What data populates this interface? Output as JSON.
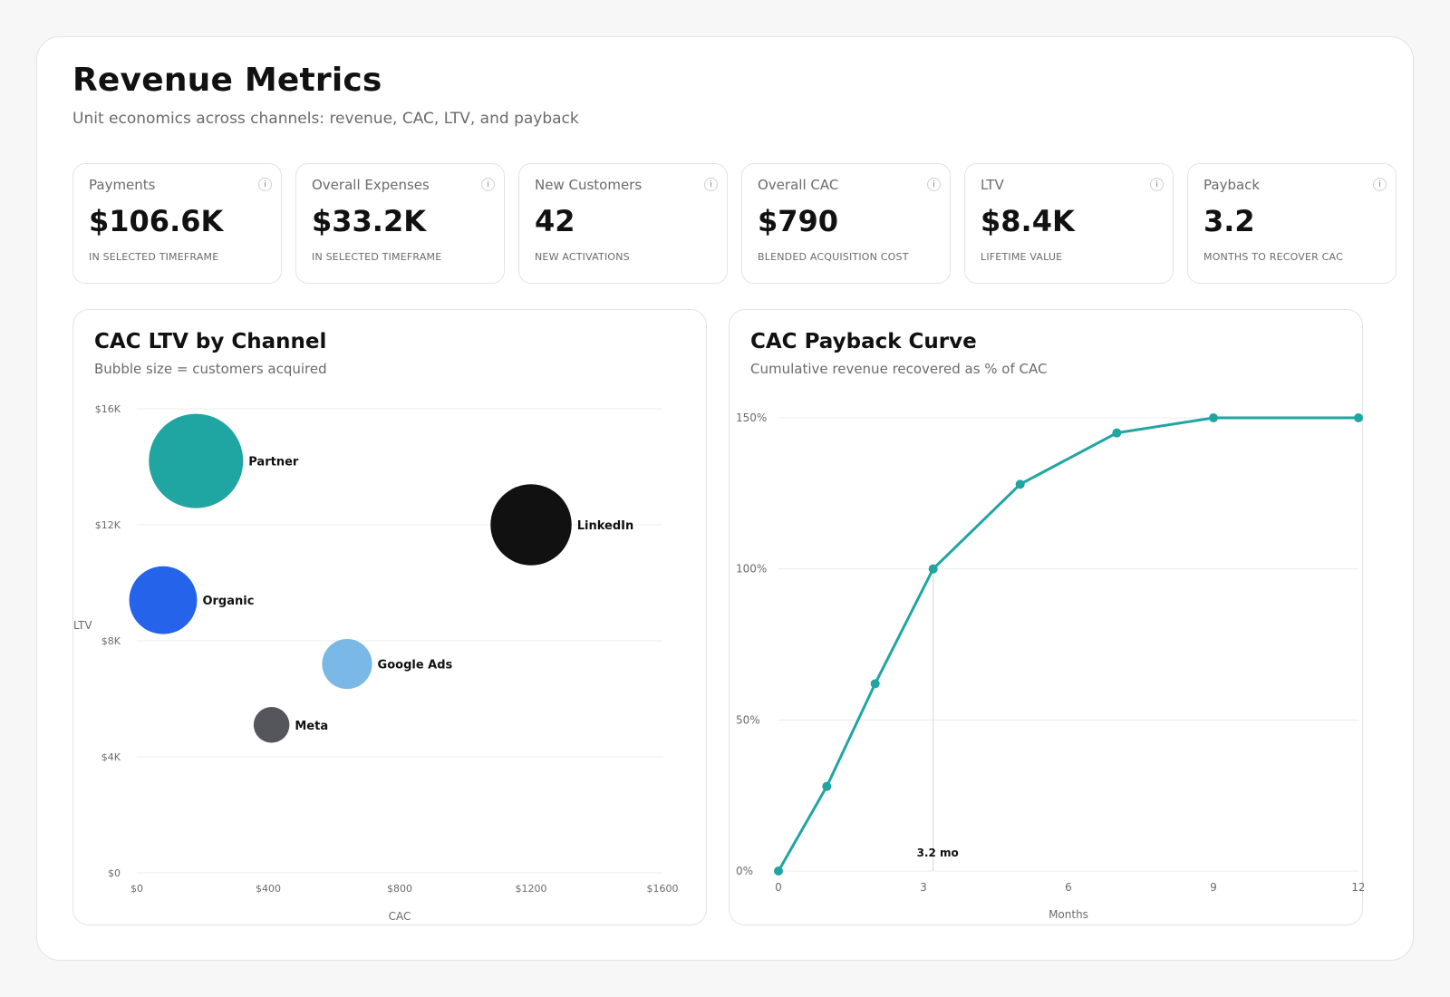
{
  "header": {
    "title": "Revenue Metrics",
    "subtitle": "Unit economics across channels: revenue, CAC, LTV, and payback"
  },
  "kpis": [
    {
      "label": "Payments",
      "value": "$106.6K",
      "caption": "IN SELECTED TIMEFRAME",
      "info": "i"
    },
    {
      "label": "Overall Expenses",
      "value": "$33.2K",
      "caption": "IN SELECTED TIMEFRAME",
      "info": "i"
    },
    {
      "label": "New Customers",
      "value": "42",
      "caption": "NEW ACTIVATIONS",
      "info": "i"
    },
    {
      "label": "Overall CAC",
      "value": "$790",
      "caption": "BLENDED ACQUISITION COST",
      "info": "i"
    },
    {
      "label": "LTV",
      "value": "$8.4K",
      "caption": "LIFETIME VALUE",
      "info": "i"
    },
    {
      "label": "Payback",
      "value": "3.2",
      "caption": "MONTHS TO RECOVER CAC",
      "info": "i"
    }
  ],
  "chart_data": [
    {
      "type": "scatter",
      "title": "CAC LTV by Channel",
      "subtitle": "Bubble size = customers acquired",
      "xlabel": "CAC",
      "ylabel": "LTV",
      "xlim": [
        0,
        1600
      ],
      "ylim": [
        0,
        16000
      ],
      "x_ticks": [
        0,
        400,
        800,
        1200,
        1600
      ],
      "x_tick_labels": [
        "$0",
        "$400",
        "$800",
        "$1200",
        "$1600"
      ],
      "y_ticks": [
        0,
        4000,
        8000,
        12000,
        16000
      ],
      "y_tick_labels": [
        "$0",
        "$4K",
        "$8K",
        "$12K",
        "$16K"
      ],
      "grid": "horizontal",
      "points": [
        {
          "label": "Partner",
          "x": 180,
          "y": 14200,
          "size": 1.0,
          "color": "#1fa5a2"
        },
        {
          "label": "LinkedIn",
          "x": 1200,
          "y": 12000,
          "size": 0.86,
          "color": "#111111"
        },
        {
          "label": "Organic",
          "x": 80,
          "y": 9400,
          "size": 0.72,
          "color": "#2563eb"
        },
        {
          "label": "Google Ads",
          "x": 640,
          "y": 7200,
          "size": 0.53,
          "color": "#7ab8e8"
        },
        {
          "label": "Meta",
          "x": 410,
          "y": 5100,
          "size": 0.38,
          "color": "#55555c"
        }
      ]
    },
    {
      "type": "line",
      "title": "CAC Payback Curve",
      "subtitle": "Cumulative revenue recovered as % of CAC",
      "xlabel": "Months",
      "ylabel": "",
      "xlim": [
        0,
        12
      ],
      "ylim": [
        0,
        150
      ],
      "x_ticks": [
        0,
        3,
        6,
        9,
        12
      ],
      "y_ticks": [
        0,
        50,
        100,
        150
      ],
      "y_tick_labels": [
        "0%",
        "50%",
        "100%",
        "150%"
      ],
      "grid": "horizontal",
      "color": "#1fa5a2",
      "series": [
        {
          "x": [
            0,
            1,
            2,
            3.2,
            5,
            7,
            9,
            12
          ],
          "values": [
            0,
            28,
            62,
            100,
            128,
            145,
            150,
            150
          ]
        }
      ],
      "annotation": {
        "x": 3.2,
        "text": "3.2 mo"
      }
    }
  ]
}
